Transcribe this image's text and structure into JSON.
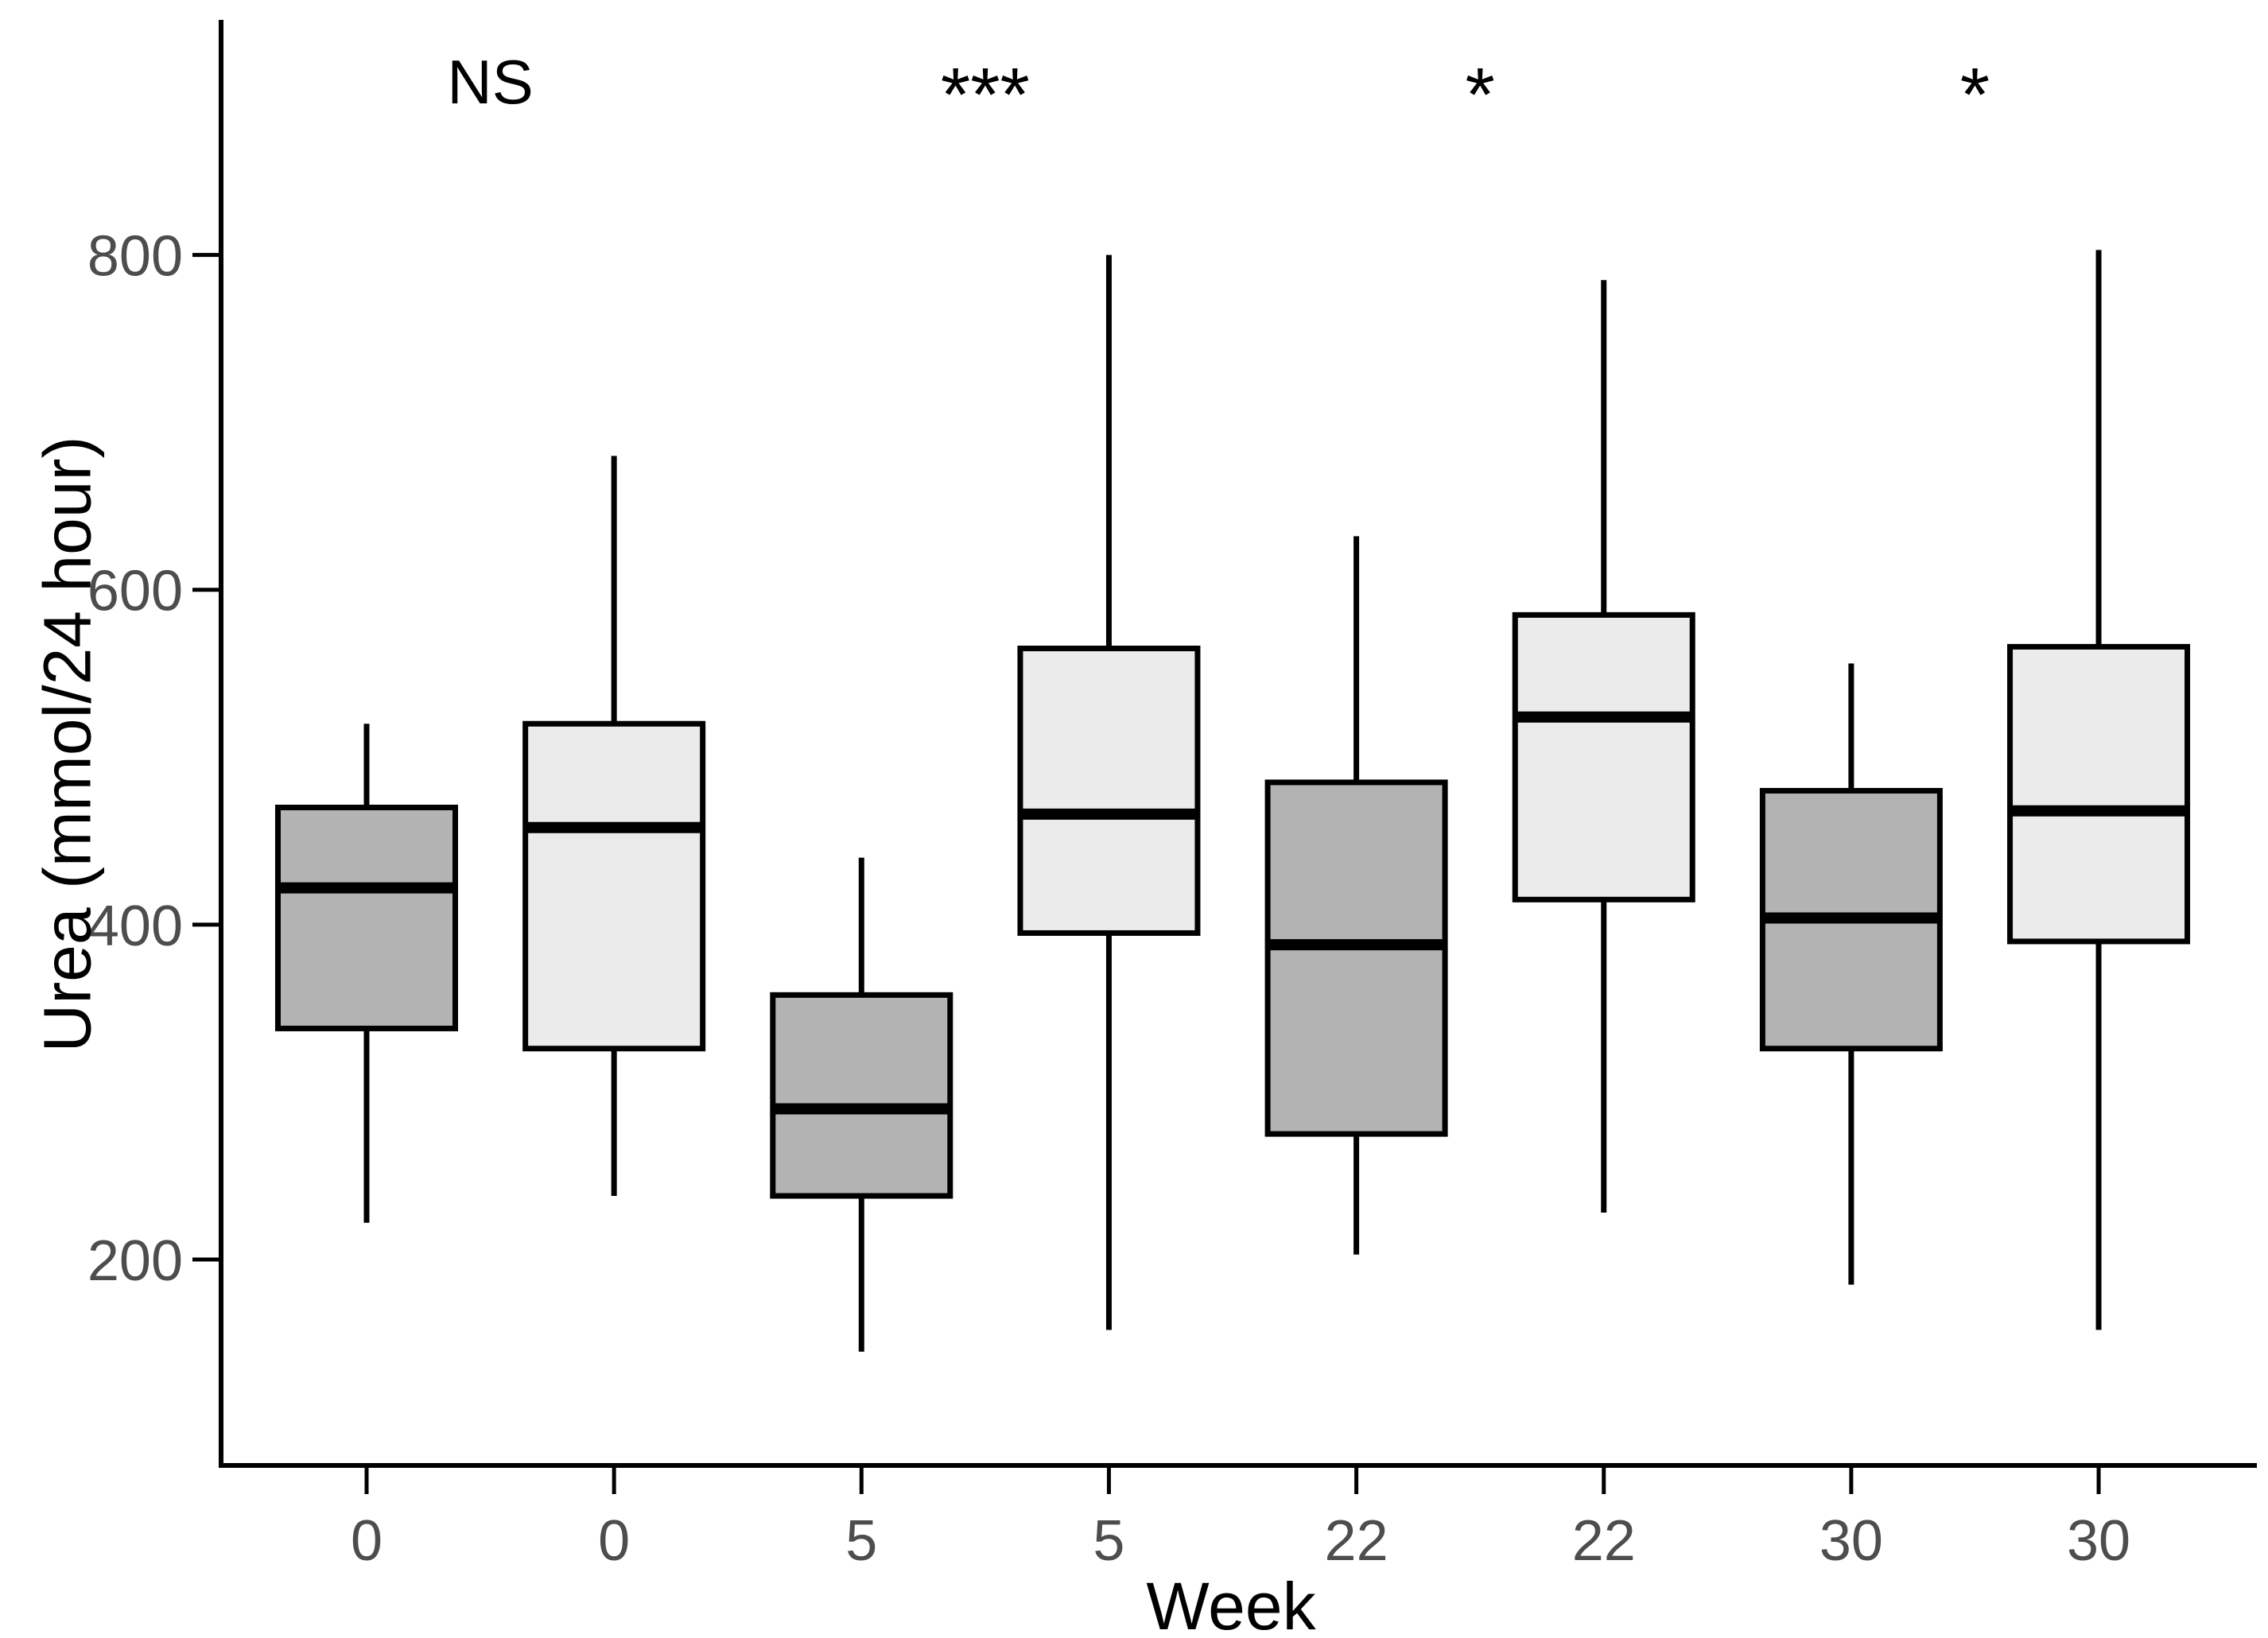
{
  "figure": {
    "background": "#ffffff"
  },
  "y_axis": {
    "title": "Urea (mmol/24 hour)",
    "tick_labels": [
      "200",
      "400",
      "600",
      "800"
    ],
    "tick_values": [
      200,
      400,
      600,
      800
    ],
    "text_color": "#4d4d4d",
    "axis_color": "#000000"
  },
  "x_axis": {
    "title": "Week",
    "tick_labels": [
      "0",
      "0",
      "5",
      "5",
      "22",
      "22",
      "30",
      "30"
    ],
    "text_color": "#4d4d4d",
    "axis_color": "#000000"
  },
  "annotations": [
    {
      "label": "NS",
      "pair_index": 0
    },
    {
      "label": "***",
      "pair_index": 1
    },
    {
      "label": "*",
      "pair_index": 2
    },
    {
      "label": "*",
      "pair_index": 3
    }
  ],
  "colors": {
    "dark_box_fill": "#b3b3b3",
    "light_box_fill": "#ebebeb",
    "line_stroke": "#000000",
    "annotation_color": "#000000"
  },
  "chart_data": {
    "type": "box",
    "title": "",
    "xlabel": "Week",
    "ylabel": "Urea (mmol/24 hour)",
    "ylim": [
      77,
      939
    ],
    "ytick_values": [
      200,
      400,
      600,
      800
    ],
    "grid": "off",
    "legend": "none",
    "categories": [
      "0",
      "0",
      "5",
      "5",
      "22",
      "22",
      "30",
      "30"
    ],
    "boxes": [
      {
        "week": "0",
        "shade": "dark",
        "whisker_low": 222,
        "q1": 338,
        "median": 422,
        "q3": 470,
        "whisker_high": 520
      },
      {
        "week": "0",
        "shade": "light",
        "whisker_low": 238,
        "q1": 326,
        "median": 458,
        "q3": 520,
        "whisker_high": 680
      },
      {
        "week": "5",
        "shade": "dark",
        "whisker_low": 145,
        "q1": 238,
        "median": 290,
        "q3": 358,
        "whisker_high": 440
      },
      {
        "week": "5",
        "shade": "light",
        "whisker_low": 158,
        "q1": 395,
        "median": 466,
        "q3": 565,
        "whisker_high": 800
      },
      {
        "week": "22",
        "shade": "dark",
        "whisker_low": 203,
        "q1": 275,
        "median": 388,
        "q3": 485,
        "whisker_high": 632
      },
      {
        "week": "22",
        "shade": "light",
        "whisker_low": 228,
        "q1": 415,
        "median": 524,
        "q3": 585,
        "whisker_high": 785
      },
      {
        "week": "30",
        "shade": "dark",
        "whisker_low": 185,
        "q1": 326,
        "median": 404,
        "q3": 480,
        "whisker_high": 556
      },
      {
        "week": "30",
        "shade": "light",
        "whisker_low": 158,
        "q1": 390,
        "median": 468,
        "q3": 566,
        "whisker_high": 803
      }
    ],
    "significance_labels": [
      "NS",
      "***",
      "*",
      "*"
    ]
  }
}
